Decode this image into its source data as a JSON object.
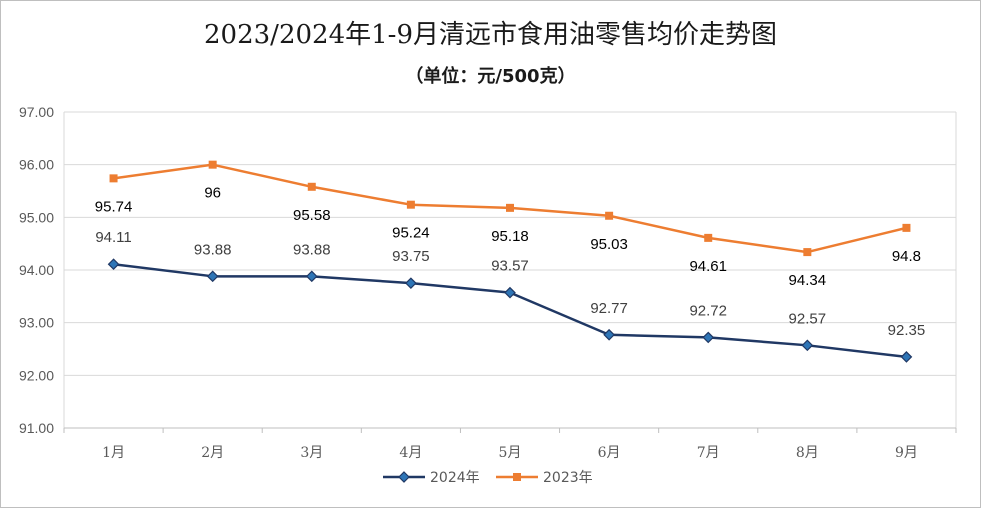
{
  "chart_data": {
    "type": "line",
    "title": "2023/2024年1-9月清远市食用油零售均价走势图",
    "subtitle": "（单位：元/500克）",
    "categories": [
      "1月",
      "2月",
      "3月",
      "4月",
      "5月",
      "6月",
      "7月",
      "8月",
      "9月"
    ],
    "ylim": [
      91.0,
      97.0
    ],
    "yticks": [
      "91.00",
      "92.00",
      "93.00",
      "94.00",
      "95.00",
      "96.00",
      "97.00"
    ],
    "grid": true,
    "legend_position": "bottom",
    "series": [
      {
        "name": "2024年",
        "color": "#203864",
        "marker": "diamond",
        "values": [
          94.11,
          93.88,
          93.88,
          93.75,
          93.57,
          92.77,
          92.72,
          92.57,
          92.35
        ],
        "labels": [
          "94.11",
          "93.88",
          "93.88",
          "93.75",
          "93.57",
          "92.77",
          "92.72",
          "92.57",
          "92.35"
        ]
      },
      {
        "name": "2023年",
        "color": "#ed7d31",
        "marker": "square",
        "values": [
          95.74,
          96,
          95.58,
          95.24,
          95.18,
          95.03,
          94.61,
          94.34,
          94.8
        ],
        "labels": [
          "95.74",
          "96",
          "95.58",
          "95.24",
          "95.18",
          "95.03",
          "94.61",
          "94.34",
          "94.8"
        ]
      }
    ]
  }
}
